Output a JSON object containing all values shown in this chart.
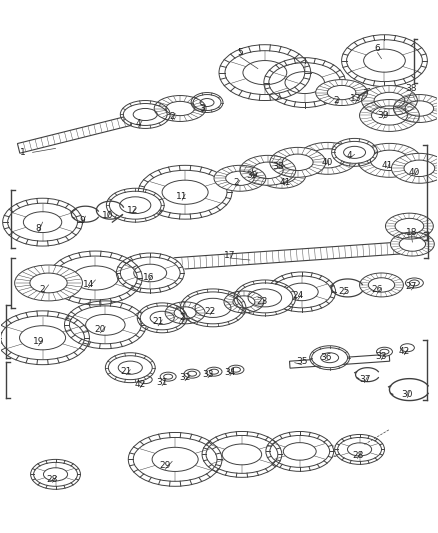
{
  "bg_color": "#ffffff",
  "line_color": "#404040",
  "label_color": "#222222",
  "label_fontsize": 6.5,
  "fig_width": 4.38,
  "fig_height": 5.33,
  "dpi": 100
}
